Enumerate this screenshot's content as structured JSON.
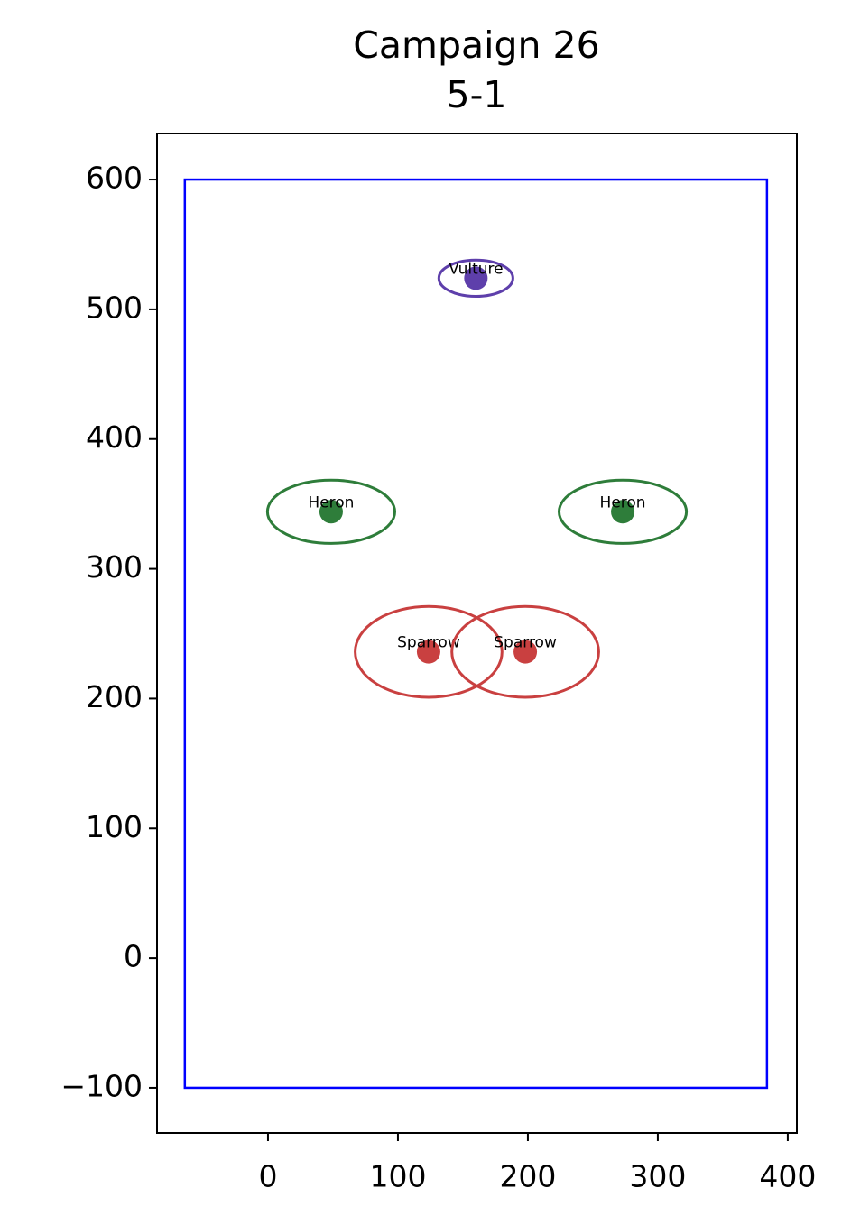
{
  "chart_data": {
    "type": "scatter",
    "title": "Campaign 26",
    "subtitle": "5-1",
    "xlim": [
      -85.4,
      407
    ],
    "ylim": [
      -134.8,
      635.5
    ],
    "xticks": [
      0,
      100,
      200,
      300,
      400
    ],
    "yticks": [
      {
        "value": -100,
        "label": "−100"
      },
      0,
      100,
      200,
      300,
      400,
      500,
      600
    ],
    "boundary": {
      "x": [
        -64,
        384
      ],
      "y": [
        -100,
        600
      ],
      "color": "#0000ff"
    },
    "points": [
      {
        "label": "Vulture",
        "x": 160,
        "y": 524,
        "rx": 28.5,
        "ry": 14,
        "color": "#5e3fab"
      },
      {
        "label": "Heron",
        "x": 48.6,
        "y": 344,
        "rx": 49,
        "ry": 24.4,
        "color": "#2e7d3a"
      },
      {
        "label": "Heron",
        "x": 273,
        "y": 344,
        "rx": 49,
        "ry": 24.4,
        "color": "#2e7d3a"
      },
      {
        "label": "Sparrow",
        "x": 123.6,
        "y": 236,
        "rx": 56.5,
        "ry": 35,
        "color": "#c94040"
      },
      {
        "label": "Sparrow",
        "x": 198,
        "y": 236,
        "rx": 56.5,
        "ry": 35,
        "color": "#c94040"
      }
    ]
  }
}
